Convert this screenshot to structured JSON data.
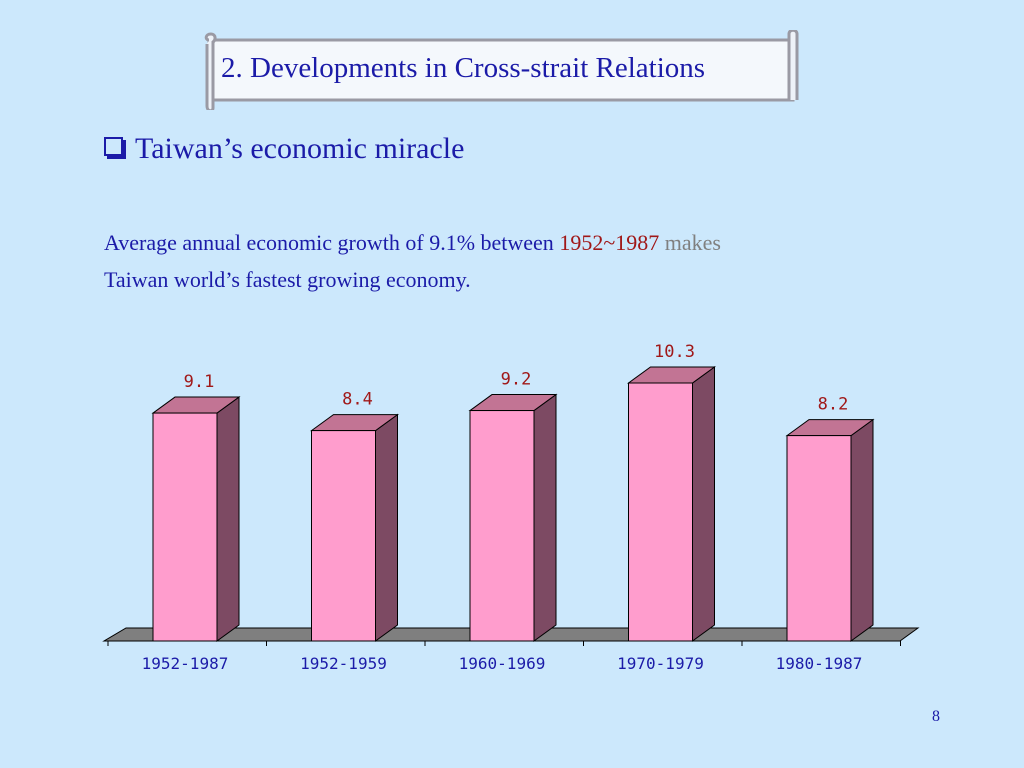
{
  "slide": {
    "title": "2. Developments in Cross-strait Relations",
    "bullet": "Taiwan’s economic miracle",
    "body_part1": "Average annual economic growth of 9.1% between ",
    "body_highlight_red": "1952~1987",
    "body_highlight_gray": " makes",
    "body_part2": "Taiwan world’s fastest growing economy.",
    "page_number": "8"
  },
  "colors": {
    "text": "#1b1ba8",
    "bar_front": "#ff9dcd",
    "bar_side": "#7d4a63",
    "bar_top": "#c27494",
    "data_label": "#a01818",
    "floor": "#7f7f7f"
  },
  "chart_data": {
    "type": "bar",
    "style": "3d-columns",
    "categories": [
      "1952-1987",
      "1952-1959",
      "1960-1969",
      "1970-1979",
      "1980-1987"
    ],
    "values": [
      9.1,
      8.4,
      9.2,
      10.3,
      8.2
    ],
    "data_labels": [
      "9.1",
      "8.4",
      "9.2",
      "10.3",
      "8.2"
    ],
    "ylim": [
      0,
      11
    ],
    "grid": false,
    "legend": "none"
  }
}
